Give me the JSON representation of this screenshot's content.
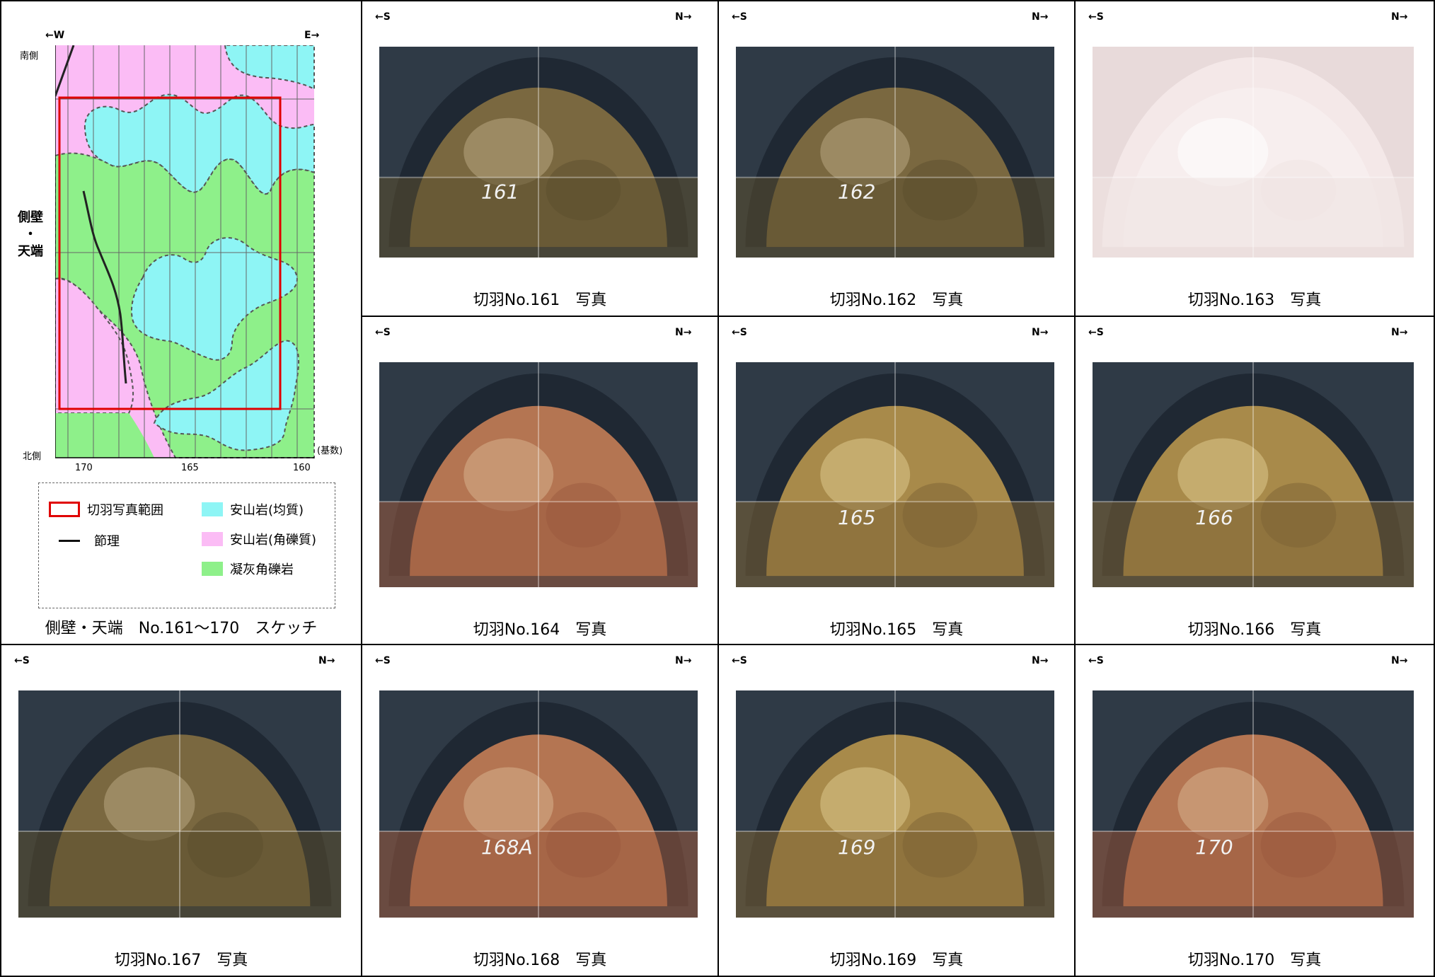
{
  "sketch": {
    "dir_w": "←W",
    "dir_e": "E→",
    "south_label": "南側",
    "north_label": "北側",
    "side_label": [
      "側壁",
      "・",
      "天端"
    ],
    "ticks": [
      "170",
      "165",
      "160"
    ],
    "unit": "(基数)",
    "caption": "側壁・天端　No.161～170　スケッチ",
    "legend": {
      "photo_range": "切羽写真範囲",
      "joint": "節理",
      "andesite_homog": "安山岩(均質)",
      "andesite_breccia": "安山岩(角礫質)",
      "tuff_breccia": "凝灰角礫岩"
    },
    "colors": {
      "andesite_homog": "#8ef5f5",
      "andesite_breccia": "#fbbcf5",
      "tuff_breccia": "#8ef08a",
      "photo_range": "#e00000"
    }
  },
  "direction": {
    "south": "←S",
    "north": "N→"
  },
  "photos": [
    {
      "caption": "切羽No.161　写真",
      "mark": "161",
      "tone": "dark"
    },
    {
      "caption": "切羽No.162　写真",
      "mark": "162",
      "tone": "dark"
    },
    {
      "caption": "切羽No.163　写真",
      "mark": "",
      "tone": "pale"
    },
    {
      "caption": "切羽No.164　写真",
      "mark": "",
      "tone": "red"
    },
    {
      "caption": "切羽No.165　写真",
      "mark": "165",
      "tone": "gold"
    },
    {
      "caption": "切羽No.166　写真",
      "mark": "166",
      "tone": "gold"
    },
    {
      "caption": "切羽No.167　写真",
      "mark": "",
      "tone": "dark"
    },
    {
      "caption": "切羽No.168　写真",
      "mark": "168A",
      "tone": "red"
    },
    {
      "caption": "切羽No.169　写真",
      "mark": "169",
      "tone": "gold"
    },
    {
      "caption": "切羽No.170　写真",
      "mark": "170",
      "tone": "red"
    }
  ]
}
